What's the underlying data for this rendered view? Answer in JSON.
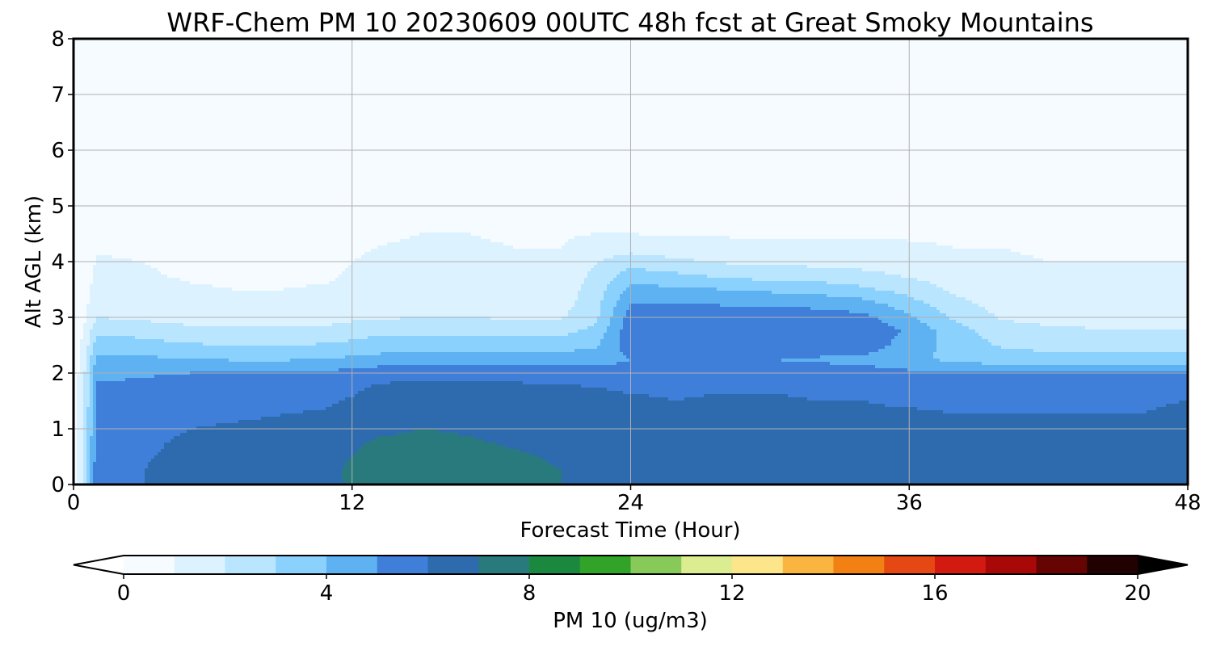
{
  "chart_data": {
    "type": "heatmap",
    "title": "WRF-Chem PM 10  20230609 00UTC 48h fcst at Great Smoky Mountains",
    "xlabel": "Forecast Time (Hour)",
    "ylabel": "Alt AGL (km)",
    "xlim": [
      0,
      48
    ],
    "ylim": [
      0,
      8
    ],
    "xticks": [
      "0",
      "12",
      "24",
      "36",
      "48"
    ],
    "yticks": [
      "0",
      "1",
      "2",
      "3",
      "4",
      "5",
      "6",
      "7",
      "8"
    ],
    "grid": true,
    "colorbar": {
      "label": "PM 10  (ug/m3)",
      "range": [
        0,
        20
      ],
      "ticks": [
        "0",
        "4",
        "8",
        "12",
        "16",
        "20"
      ],
      "extend": "both",
      "colors": [
        "#ffffff",
        "#eaf6ff",
        "#cfeeff",
        "#a4dcff",
        "#72c6fb",
        "#4a9de8",
        "#3460cc",
        "#277590",
        "#2a7e68",
        "#0c9218",
        "#56b43a",
        "#b9e07a",
        "#fffaa8",
        "#fbd069",
        "#f79a14",
        "#ef6611",
        "#dc2a16",
        "#c80a0c",
        "#8a0505",
        "#420202",
        "#000000"
      ]
    },
    "x": [
      0,
      0.5,
      1,
      3,
      5,
      7,
      9,
      11,
      12,
      13,
      15,
      17,
      19,
      21,
      22.5,
      24,
      26,
      28,
      30,
      32,
      34,
      36,
      38,
      40,
      42,
      44,
      46,
      48
    ],
    "y": [
      0,
      0.25,
      0.5,
      0.75,
      1,
      1.25,
      1.5,
      1.75,
      2,
      2.25,
      2.5,
      2.75,
      3,
      3.25,
      3.5,
      3.75,
      4,
      4.25,
      4.5,
      5,
      5.5,
      6,
      6.5,
      7,
      7.5,
      8
    ],
    "z": [
      [
        0.2,
        2.5,
        5.6,
        6.0,
        6.4,
        6.5,
        6.6,
        6.8,
        7.1,
        7.3,
        7.6,
        7.5,
        7.2,
        7.0,
        6.9,
        6.9,
        6.9,
        7.0,
        7.0,
        6.9,
        6.8,
        6.7,
        6.9,
        7.0,
        6.9,
        6.8,
        6.6,
        6.6
      ],
      [
        0.2,
        2.5,
        5.6,
        6.0,
        6.4,
        6.6,
        6.7,
        6.9,
        7.1,
        7.4,
        7.6,
        7.5,
        7.2,
        7.0,
        6.9,
        6.9,
        6.8,
        6.9,
        6.9,
        6.8,
        6.7,
        6.6,
        6.8,
        6.9,
        6.8,
        6.7,
        6.5,
        6.5
      ],
      [
        0.2,
        2.4,
        5.6,
        5.9,
        6.3,
        6.5,
        6.6,
        6.8,
        7.0,
        7.3,
        7.5,
        7.3,
        7.1,
        6.9,
        6.8,
        6.8,
        6.7,
        6.8,
        6.8,
        6.7,
        6.6,
        6.5,
        6.6,
        6.7,
        6.6,
        6.5,
        6.4,
        6.4
      ],
      [
        0.2,
        2.4,
        5.5,
        5.8,
        6.2,
        6.3,
        6.5,
        6.6,
        6.8,
        7.1,
        7.2,
        7.1,
        6.9,
        6.8,
        6.7,
        6.6,
        6.6,
        6.6,
        6.6,
        6.6,
        6.5,
        6.4,
        6.4,
        6.5,
        6.4,
        6.3,
        6.3,
        6.3
      ],
      [
        0.2,
        2.3,
        5.4,
        5.6,
        6.0,
        6.1,
        6.2,
        6.4,
        6.6,
        6.8,
        7.0,
        6.9,
        6.7,
        6.6,
        6.5,
        6.4,
        6.4,
        6.4,
        6.4,
        6.4,
        6.3,
        6.3,
        6.2,
        6.3,
        6.2,
        6.2,
        6.2,
        6.3
      ],
      [
        0.2,
        2.3,
        5.3,
        5.4,
        5.8,
        5.9,
        6.0,
        6.1,
        6.3,
        6.5,
        6.7,
        6.7,
        6.5,
        6.4,
        6.3,
        6.2,
        6.2,
        6.2,
        6.2,
        6.2,
        6.1,
        6.1,
        6.0,
        6.0,
        6.0,
        6.0,
        6.0,
        6.2
      ],
      [
        0.2,
        2.2,
        5.2,
        5.3,
        5.6,
        5.7,
        5.8,
        5.9,
        6.1,
        6.3,
        6.5,
        6.5,
        6.4,
        6.3,
        6.2,
        6.1,
        6.0,
        6.1,
        6.1,
        6.0,
        6.0,
        5.9,
        5.9,
        5.9,
        5.9,
        5.9,
        5.9,
        6.0
      ],
      [
        0.2,
        2.2,
        5.1,
        5.2,
        5.4,
        5.5,
        5.5,
        5.6,
        5.8,
        6.1,
        6.3,
        6.3,
        6.2,
        6.1,
        6.0,
        5.9,
        5.9,
        5.9,
        5.9,
        5.9,
        5.8,
        5.8,
        5.6,
        5.7,
        5.8,
        5.8,
        5.8,
        5.8
      ],
      [
        0.2,
        2.1,
        4.8,
        4.9,
        5.0,
        5.1,
        5.1,
        5.2,
        5.4,
        5.6,
        5.7,
        5.7,
        5.6,
        5.5,
        5.4,
        5.3,
        5.3,
        5.3,
        5.3,
        5.3,
        5.3,
        5.2,
        5.1,
        5.0,
        5.1,
        5.1,
        5.1,
        5.1
      ],
      [
        0.2,
        1.8,
        4.2,
        4.2,
        4.0,
        3.9,
        3.9,
        4.0,
        4.2,
        4.3,
        4.4,
        4.4,
        4.4,
        4.5,
        4.6,
        5.0,
        5.0,
        5.0,
        5.0,
        4.9,
        4.8,
        4.3,
        3.7,
        3.4,
        3.4,
        3.4,
        3.4,
        3.4
      ],
      [
        0.2,
        1.5,
        3.6,
        3.4,
        3.1,
        3.0,
        3.0,
        3.1,
        3.3,
        3.5,
        3.6,
        3.6,
        3.5,
        3.5,
        3.9,
        5.5,
        5.5,
        5.5,
        5.6,
        5.6,
        5.5,
        4.6,
        3.6,
        2.9,
        2.7,
        2.7,
        2.7,
        2.7
      ],
      [
        0.2,
        1.2,
        2.8,
        2.6,
        2.3,
        2.2,
        2.2,
        2.3,
        2.5,
        2.7,
        2.8,
        2.8,
        2.7,
        2.7,
        3.3,
        5.7,
        5.8,
        5.8,
        5.9,
        5.9,
        5.8,
        4.8,
        3.4,
        2.4,
        2.2,
        2.1,
        2.1,
        2.1
      ],
      [
        0.2,
        0.9,
        2.0,
        1.8,
        1.6,
        1.5,
        1.5,
        1.6,
        1.8,
        1.9,
        2.0,
        2.0,
        1.9,
        1.9,
        2.8,
        5.5,
        5.6,
        5.6,
        5.6,
        5.5,
        5.3,
        4.2,
        2.8,
        1.9,
        1.7,
        1.6,
        1.6,
        1.6
      ],
      [
        0.2,
        0.8,
        1.6,
        1.5,
        1.3,
        1.2,
        1.2,
        1.3,
        1.5,
        1.6,
        1.7,
        1.7,
        1.6,
        1.6,
        2.6,
        5.0,
        5.0,
        4.9,
        4.8,
        4.7,
        4.4,
        3.4,
        2.3,
        1.6,
        1.4,
        1.4,
        1.4,
        1.4
      ],
      [
        0.2,
        0.7,
        1.4,
        1.3,
        1.1,
        1.0,
        1.0,
        1.1,
        1.3,
        1.4,
        1.5,
        1.4,
        1.4,
        1.4,
        2.5,
        4.3,
        4.2,
        4.0,
        3.8,
        3.6,
        3.2,
        2.6,
        1.8,
        1.4,
        1.3,
        1.2,
        1.2,
        1.2
      ],
      [
        0.2,
        0.6,
        1.2,
        1.1,
        0.9,
        0.8,
        0.8,
        0.9,
        1.1,
        1.2,
        1.3,
        1.3,
        1.2,
        1.2,
        2.3,
        3.5,
        3.2,
        2.8,
        2.6,
        2.5,
        2.3,
        1.9,
        1.5,
        1.2,
        1.1,
        1.1,
        1.1,
        1.1
      ],
      [
        0.2,
        0.5,
        1.1,
        1.0,
        0.8,
        0.7,
        0.7,
        0.8,
        1.0,
        1.1,
        1.2,
        1.2,
        1.1,
        1.1,
        1.9,
        2.6,
        2.2,
        1.9,
        1.8,
        1.7,
        1.6,
        1.4,
        1.2,
        1.1,
        1.0,
        1.0,
        1.0,
        1.0
      ],
      [
        0.2,
        0.4,
        0.9,
        0.8,
        0.6,
        0.6,
        0.6,
        0.7,
        0.9,
        1.0,
        1.1,
        1.1,
        1.0,
        1.0,
        1.4,
        1.6,
        1.4,
        1.3,
        1.2,
        1.2,
        1.2,
        1.1,
        1.0,
        1.0,
        0.9,
        0.9,
        0.9,
        0.9
      ],
      [
        0.2,
        0.3,
        0.7,
        0.6,
        0.5,
        0.5,
        0.5,
        0.6,
        0.8,
        0.9,
        1.0,
        1.0,
        0.9,
        0.9,
        1.0,
        1.0,
        0.9,
        0.9,
        0.9,
        0.9,
        0.9,
        0.9,
        0.9,
        0.9,
        0.8,
        0.8,
        0.8,
        0.8
      ],
      [
        0.2,
        0.3,
        0.5,
        0.5,
        0.4,
        0.4,
        0.4,
        0.5,
        0.7,
        0.8,
        0.9,
        0.8,
        0.7,
        0.6,
        0.6,
        0.6,
        0.5,
        0.5,
        0.5,
        0.5,
        0.5,
        0.6,
        0.6,
        0.6,
        0.6,
        0.7,
        0.7,
        0.7
      ],
      [
        0.1,
        0.2,
        0.4,
        0.4,
        0.3,
        0.3,
        0.3,
        0.4,
        0.5,
        0.6,
        0.7,
        0.6,
        0.5,
        0.4,
        0.4,
        0.4,
        0.4,
        0.4,
        0.4,
        0.4,
        0.4,
        0.4,
        0.5,
        0.5,
        0.6,
        0.6,
        0.6,
        0.7
      ],
      [
        0.1,
        0.2,
        0.3,
        0.3,
        0.3,
        0.3,
        0.3,
        0.3,
        0.4,
        0.4,
        0.5,
        0.4,
        0.4,
        0.3,
        0.3,
        0.3,
        0.3,
        0.3,
        0.3,
        0.3,
        0.3,
        0.4,
        0.5,
        0.5,
        0.6,
        0.6,
        0.7,
        0.7
      ],
      [
        0.1,
        0.1,
        0.3,
        0.2,
        0.2,
        0.2,
        0.2,
        0.3,
        0.3,
        0.3,
        0.3,
        0.3,
        0.3,
        0.3,
        0.3,
        0.3,
        0.3,
        0.3,
        0.3,
        0.3,
        0.3,
        0.4,
        0.4,
        0.5,
        0.6,
        0.7,
        0.7,
        0.8
      ],
      [
        0.1,
        0.1,
        0.2,
        0.2,
        0.2,
        0.2,
        0.2,
        0.2,
        0.3,
        0.3,
        0.3,
        0.3,
        0.3,
        0.3,
        0.3,
        0.3,
        0.3,
        0.3,
        0.3,
        0.3,
        0.3,
        0.4,
        0.4,
        0.5,
        0.6,
        0.7,
        0.8,
        0.8
      ],
      [
        0.1,
        0.1,
        0.2,
        0.2,
        0.2,
        0.2,
        0.2,
        0.2,
        0.2,
        0.2,
        0.2,
        0.2,
        0.2,
        0.2,
        0.2,
        0.3,
        0.3,
        0.3,
        0.3,
        0.3,
        0.3,
        0.4,
        0.4,
        0.5,
        0.6,
        0.7,
        0.8,
        0.8
      ],
      [
        0.1,
        0.1,
        0.2,
        0.2,
        0.2,
        0.2,
        0.2,
        0.2,
        0.2,
        0.2,
        0.2,
        0.2,
        0.2,
        0.2,
        0.2,
        0.3,
        0.3,
        0.3,
        0.3,
        0.3,
        0.3,
        0.4,
        0.4,
        0.5,
        0.6,
        0.7,
        0.8,
        0.8
      ]
    ]
  }
}
